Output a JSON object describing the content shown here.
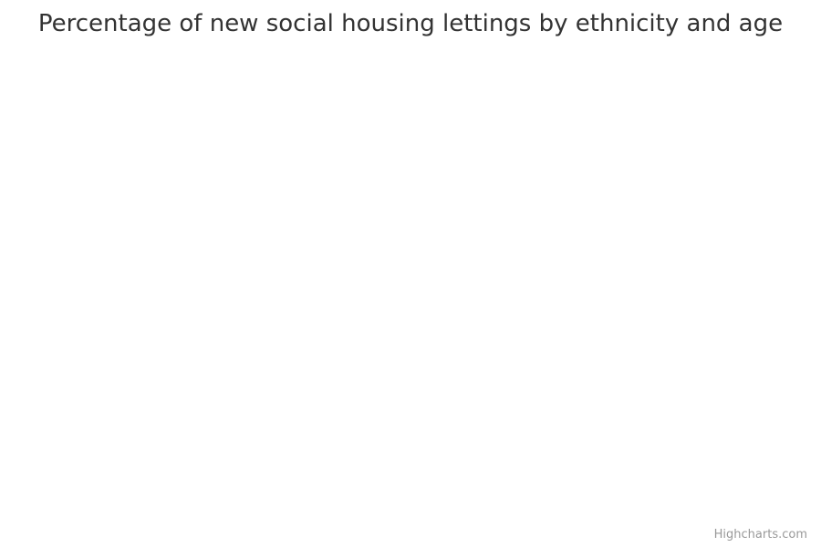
{
  "chart_data": {
    "type": "bar",
    "title": "Percentage of new social housing lettings by ethnicity and age",
    "categories": [],
    "series": []
  },
  "credits": {
    "text": "Highcharts.com"
  }
}
